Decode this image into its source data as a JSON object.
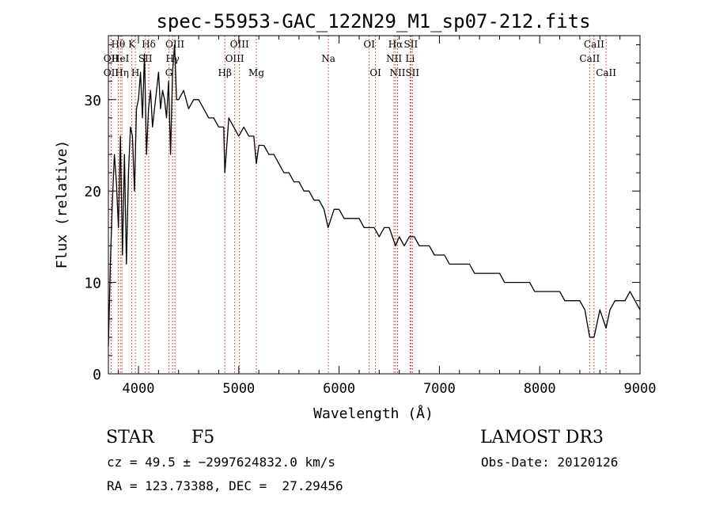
{
  "chart_data": {
    "type": "line",
    "title": "spec-55953-GAC_122N29_M1_sp07-212.fits",
    "xlabel": "Wavelength (Å)",
    "ylabel": "Flux (relative)",
    "xlim": [
      3700,
      9000
    ],
    "ylim": [
      0,
      37
    ],
    "xticks": [
      4000,
      5000,
      6000,
      7000,
      8000,
      9000
    ],
    "yticks": [
      0,
      10,
      20,
      30
    ],
    "grid": false,
    "series": [
      {
        "name": "flux",
        "color": "#000000",
        "x": [
          3700,
          3720,
          3740,
          3760,
          3780,
          3800,
          3820,
          3840,
          3860,
          3880,
          3900,
          3920,
          3940,
          3960,
          3980,
          4000,
          4020,
          4040,
          4060,
          4080,
          4100,
          4120,
          4140,
          4160,
          4180,
          4200,
          4220,
          4240,
          4260,
          4280,
          4300,
          4320,
          4340,
          4360,
          4380,
          4400,
          4450,
          4500,
          4550,
          4600,
          4650,
          4700,
          4750,
          4800,
          4850,
          4861,
          4900,
          4950,
          5000,
          5050,
          5100,
          5150,
          5175,
          5200,
          5250,
          5300,
          5350,
          5400,
          5450,
          5500,
          5550,
          5600,
          5650,
          5700,
          5750,
          5800,
          5850,
          5890,
          5950,
          6000,
          6050,
          6100,
          6150,
          6200,
          6250,
          6300,
          6350,
          6400,
          6450,
          6500,
          6563,
          6600,
          6650,
          6700,
          6750,
          6800,
          6850,
          6900,
          6950,
          7000,
          7050,
          7100,
          7150,
          7200,
          7250,
          7300,
          7350,
          7400,
          7450,
          7500,
          7550,
          7600,
          7650,
          7700,
          7750,
          7800,
          7850,
          7900,
          7950,
          8000,
          8050,
          8100,
          8150,
          8200,
          8250,
          8300,
          8350,
          8400,
          8450,
          8498,
          8542,
          8600,
          8662,
          8700,
          8750,
          8800,
          8850,
          8900,
          8950,
          9000
        ],
        "y": [
          3,
          12,
          19,
          24,
          21,
          16,
          26,
          13,
          24,
          12,
          22,
          27,
          26,
          20,
          29,
          30,
          33,
          28,
          35,
          24,
          29,
          31,
          27,
          29,
          31,
          33,
          29,
          31,
          30,
          28,
          32,
          24,
          33,
          36,
          30,
          30,
          31,
          29,
          30,
          30,
          29,
          28,
          28,
          27,
          27,
          22,
          28,
          27,
          26,
          27,
          26,
          26,
          23,
          25,
          25,
          24,
          24,
          23,
          22,
          22,
          21,
          21,
          20,
          20,
          19,
          19,
          18,
          16,
          18,
          18,
          17,
          17,
          17,
          17,
          16,
          16,
          16,
          15,
          16,
          16,
          14,
          15,
          14,
          15,
          15,
          14,
          14,
          14,
          13,
          13,
          13,
          12,
          12,
          12,
          12,
          12,
          11,
          11,
          11,
          11,
          11,
          11,
          10,
          10,
          10,
          10,
          10,
          10,
          9,
          9,
          9,
          9,
          9,
          9,
          8,
          8,
          8,
          8,
          7,
          4,
          4,
          7,
          5,
          7,
          8,
          8,
          8,
          9,
          8,
          7
        ]
      }
    ],
    "lines": [
      {
        "label": "Hθ",
        "x": 3798,
        "row": 0
      },
      {
        "label": "OII",
        "x": 3727,
        "row": 1
      },
      {
        "label": "OII",
        "x": 3727,
        "row": 2
      },
      {
        "label": "HeI",
        "x": 3820,
        "row": 1
      },
      {
        "label": "Hη",
        "x": 3835,
        "row": 2
      },
      {
        "label": "K",
        "x": 3934,
        "row": 0
      },
      {
        "label": "SII",
        "x": 4069,
        "row": 1
      },
      {
        "label": "H",
        "x": 3969,
        "row": 2
      },
      {
        "label": "Hδ",
        "x": 4102,
        "row": 0
      },
      {
        "label": "OIII",
        "x": 4363,
        "row": 0
      },
      {
        "label": "Hγ",
        "x": 4340,
        "row": 1
      },
      {
        "label": "G",
        "x": 4304,
        "row": 2
      },
      {
        "label": "OIII",
        "x": 5007,
        "row": 0
      },
      {
        "label": "OIII",
        "x": 4959,
        "row": 1
      },
      {
        "label": "Hβ",
        "x": 4861,
        "row": 2
      },
      {
        "label": "Mg",
        "x": 5175,
        "row": 2
      },
      {
        "label": "Na",
        "x": 5893,
        "row": 1
      },
      {
        "label": "OI",
        "x": 6300,
        "row": 0
      },
      {
        "label": "OI",
        "x": 6363,
        "row": 2
      },
      {
        "label": "Hα",
        "x": 6563,
        "row": 0
      },
      {
        "label": "SII",
        "x": 6716,
        "row": 0
      },
      {
        "label": "NII",
        "x": 6548,
        "row": 1
      },
      {
        "label": "Li",
        "x": 6708,
        "row": 1
      },
      {
        "label": "NII",
        "x": 6583,
        "row": 2
      },
      {
        "label": "SII",
        "x": 6731,
        "row": 2
      },
      {
        "label": "CaII",
        "x": 8542,
        "row": 0
      },
      {
        "label": "CaII",
        "x": 8498,
        "row": 1
      },
      {
        "label": "CaII",
        "x": 8662,
        "row": 2
      }
    ]
  },
  "info": {
    "object_class": "STAR",
    "subclass": "F5",
    "survey": "LAMOST DR3",
    "redshift": "cz = 49.5 ± −2997624832.0 km/s",
    "obs_date": "Obs-Date: 20120126",
    "coords": "RA = 123.73388, DEC =  27.29456"
  }
}
